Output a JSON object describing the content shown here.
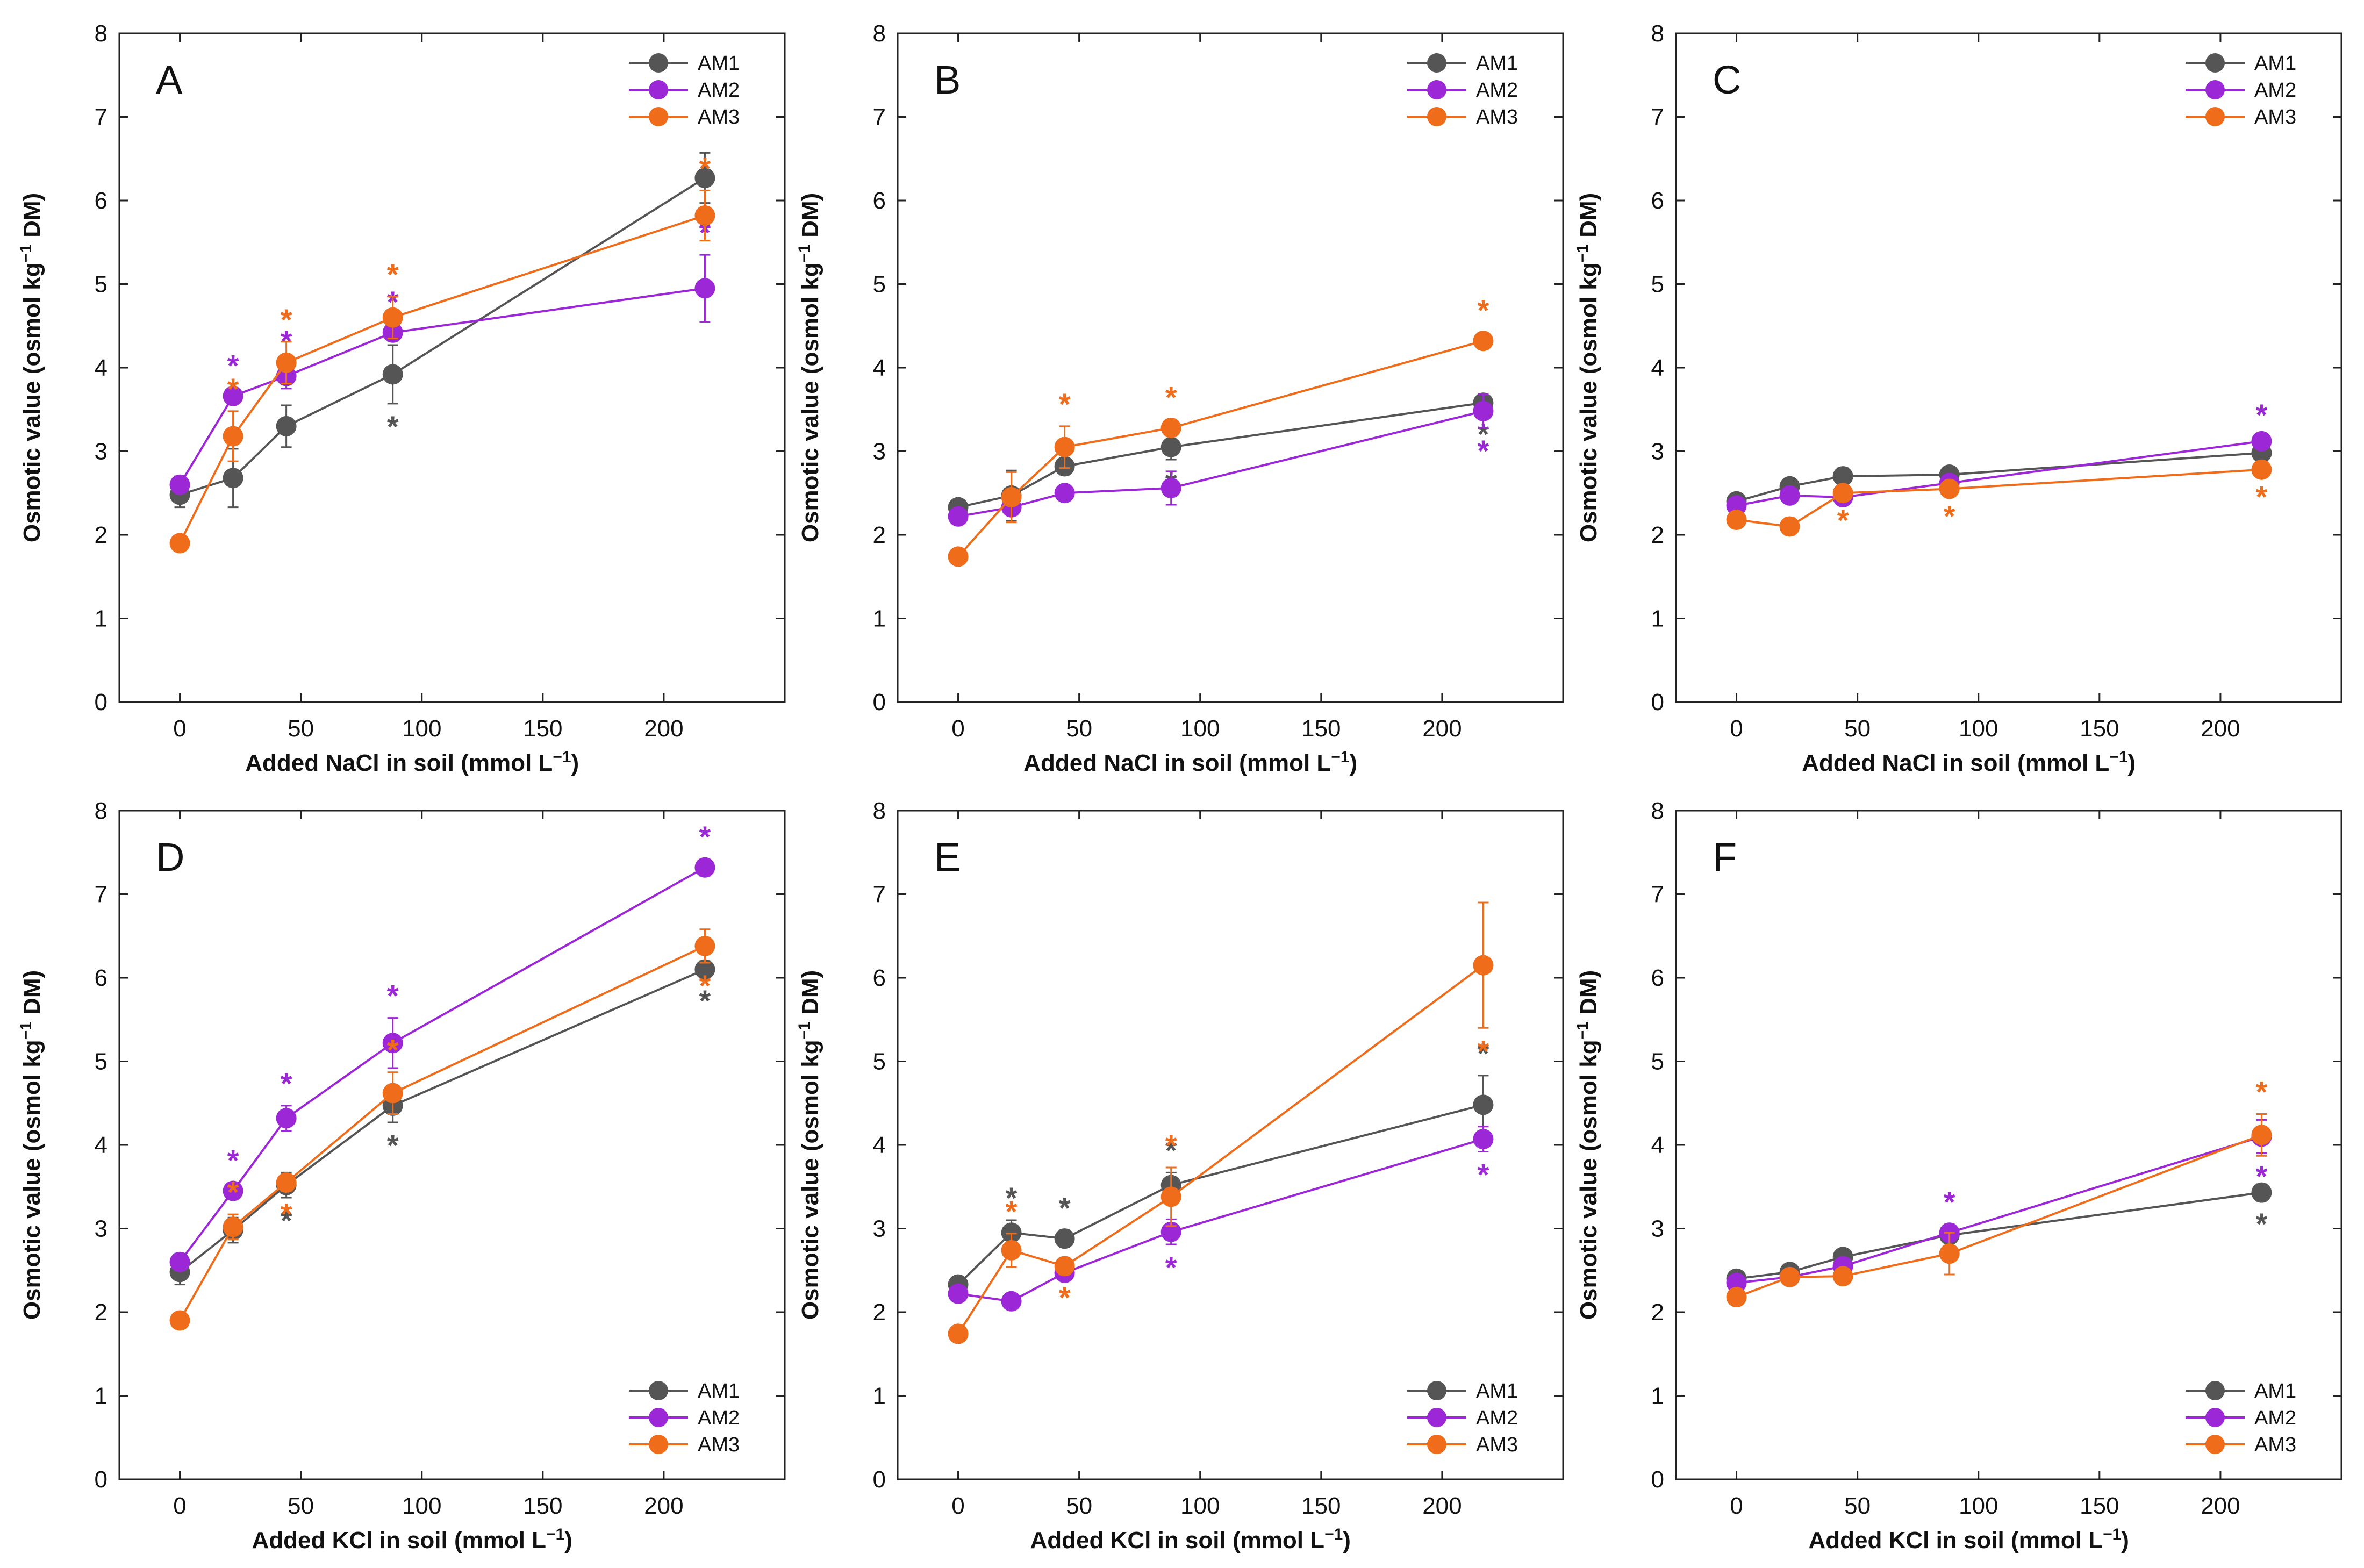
{
  "figure": {
    "series_colors": {
      "AM1": "#555555",
      "AM2": "#9b27d6",
      "AM3": "#ef6c1a"
    }
  },
  "chart_data": [
    {
      "panel": "A",
      "type": "line",
      "xlabel": "Added NaCl in soil (mmol L⁻¹)",
      "ylabel": "Osmotic value (osmol kg⁻¹ DM)",
      "xlim": [
        -25,
        250
      ],
      "ylim": [
        0,
        8
      ],
      "xticks": [
        0,
        50,
        100,
        150,
        200
      ],
      "yticks": [
        0,
        1,
        2,
        3,
        4,
        5,
        6,
        7,
        8
      ],
      "legend_position": "top-right",
      "series": [
        {
          "name": "AM1",
          "color": "#555555",
          "x": [
            0,
            22,
            44,
            88,
            217
          ],
          "y": [
            2.48,
            2.68,
            3.3,
            3.92,
            6.27
          ],
          "err": [
            0.15,
            0.35,
            0.25,
            0.35,
            0.3
          ],
          "sig": [
            false,
            false,
            false,
            true,
            true
          ],
          "sig_side": "below"
        },
        {
          "name": "AM2",
          "color": "#9b27d6",
          "x": [
            0,
            22,
            44,
            88,
            217
          ],
          "y": [
            2.6,
            3.66,
            3.9,
            4.42,
            4.95
          ],
          "err": [
            0.1,
            0.1,
            0.15,
            0.1,
            0.4
          ],
          "sig": [
            false,
            true,
            true,
            true,
            true
          ],
          "sig_side": "above"
        },
        {
          "name": "AM3",
          "color": "#ef6c1a",
          "x": [
            0,
            22,
            44,
            88,
            217
          ],
          "y": [
            1.9,
            3.18,
            4.06,
            4.6,
            5.82
          ],
          "err": [
            0.05,
            0.3,
            0.25,
            0.25,
            0.3
          ],
          "sig": [
            false,
            true,
            true,
            true,
            true
          ],
          "sig_side": "above"
        }
      ]
    },
    {
      "panel": "B",
      "type": "line",
      "xlabel": "Added NaCl in soil (mmol L⁻¹)",
      "ylabel": "Osmotic value (osmol kg⁻¹ DM)",
      "xlim": [
        -25,
        250
      ],
      "ylim": [
        0,
        8
      ],
      "xticks": [
        0,
        50,
        100,
        150,
        200
      ],
      "yticks": [
        0,
        1,
        2,
        3,
        4,
        5,
        6,
        7,
        8
      ],
      "legend_position": "top-right",
      "series": [
        {
          "name": "AM1",
          "color": "#555555",
          "x": [
            0,
            22,
            44,
            88,
            217
          ],
          "y": [
            2.33,
            2.47,
            2.82,
            3.05,
            3.58
          ],
          "err": [
            0.05,
            0.3,
            0.1,
            0.15,
            0.1
          ],
          "sig": [
            false,
            false,
            false,
            true,
            true
          ],
          "sig_side": "below"
        },
        {
          "name": "AM2",
          "color": "#9b27d6",
          "x": [
            0,
            22,
            44,
            88,
            217
          ],
          "y": [
            2.22,
            2.33,
            2.5,
            2.56,
            3.48
          ],
          "err": [
            0.05,
            0.05,
            0.05,
            0.2,
            0.2
          ],
          "sig": [
            false,
            false,
            false,
            false,
            true
          ],
          "sig_side": "below"
        },
        {
          "name": "AM3",
          "color": "#ef6c1a",
          "x": [
            0,
            22,
            44,
            88,
            217
          ],
          "y": [
            1.74,
            2.45,
            3.05,
            3.28,
            4.32
          ],
          "err": [
            0.05,
            0.3,
            0.25,
            0.1,
            0.1
          ],
          "sig": [
            false,
            false,
            true,
            true,
            true
          ],
          "sig_side": "above"
        }
      ]
    },
    {
      "panel": "C",
      "type": "line",
      "xlabel": "Added NaCl in soil (mmol L⁻¹)",
      "ylabel": "Osmotic value (osmol kg⁻¹ DM)",
      "xlim": [
        -25,
        250
      ],
      "ylim": [
        0,
        8
      ],
      "xticks": [
        0,
        50,
        100,
        150,
        200
      ],
      "yticks": [
        0,
        1,
        2,
        3,
        4,
        5,
        6,
        7,
        8
      ],
      "legend_position": "top-right",
      "series": [
        {
          "name": "AM1",
          "color": "#555555",
          "x": [
            0,
            22,
            44,
            88,
            217
          ],
          "y": [
            2.4,
            2.58,
            2.7,
            2.72,
            2.98
          ],
          "err": [
            0.05,
            0.05,
            0.1,
            0.05,
            0.05
          ],
          "sig": [
            false,
            false,
            false,
            false,
            false
          ],
          "sig_side": "below"
        },
        {
          "name": "AM2",
          "color": "#9b27d6",
          "x": [
            0,
            22,
            44,
            88,
            217
          ],
          "y": [
            2.35,
            2.47,
            2.45,
            2.62,
            3.12
          ],
          "err": [
            0.05,
            0.05,
            0.05,
            0.05,
            0.05
          ],
          "sig": [
            false,
            false,
            false,
            false,
            true
          ],
          "sig_side": "above"
        },
        {
          "name": "AM3",
          "color": "#ef6c1a",
          "x": [
            0,
            22,
            44,
            88,
            217
          ],
          "y": [
            2.18,
            2.1,
            2.5,
            2.55,
            2.78
          ],
          "err": [
            0.05,
            0.1,
            0.05,
            0.05,
            0.05
          ],
          "sig": [
            false,
            false,
            true,
            true,
            true
          ],
          "sig_side": "below"
        }
      ]
    },
    {
      "panel": "D",
      "type": "line",
      "xlabel": "Added KCl in soil (mmol L⁻¹)",
      "ylabel": "Osmotic value (osmol kg⁻¹ DM)",
      "xlim": [
        -25,
        250
      ],
      "ylim": [
        0,
        8
      ],
      "xticks": [
        0,
        50,
        100,
        150,
        200
      ],
      "yticks": [
        0,
        1,
        2,
        3,
        4,
        5,
        6,
        7,
        8
      ],
      "legend_position": "bottom-right",
      "series": [
        {
          "name": "AM1",
          "color": "#555555",
          "x": [
            0,
            22,
            44,
            88,
            217
          ],
          "y": [
            2.48,
            2.98,
            3.52,
            4.47,
            6.1
          ],
          "err": [
            0.15,
            0.15,
            0.15,
            0.2,
            0.1
          ],
          "sig": [
            false,
            false,
            true,
            true,
            true
          ],
          "sig_side": "below"
        },
        {
          "name": "AM2",
          "color": "#9b27d6",
          "x": [
            0,
            22,
            44,
            88,
            217
          ],
          "y": [
            2.6,
            3.45,
            4.32,
            5.22,
            7.32
          ],
          "err": [
            0.1,
            0.1,
            0.15,
            0.3,
            0.1
          ],
          "sig": [
            false,
            true,
            true,
            true,
            true
          ],
          "sig_side": "above"
        },
        {
          "name": "AM3",
          "color": "#ef6c1a",
          "x": [
            0,
            22,
            44,
            88,
            217
          ],
          "y": [
            1.9,
            3.02,
            3.55,
            4.62,
            6.38
          ],
          "err": [
            0.05,
            0.15,
            0.1,
            0.25,
            0.2
          ],
          "sig": [
            false,
            true,
            true,
            true,
            true
          ],
          "sig_side": "mixed"
        }
      ]
    },
    {
      "panel": "E",
      "type": "line",
      "xlabel": "Added KCl in soil (mmol L⁻¹)",
      "ylabel": "Osmotic value (osmol kg⁻¹ DM)",
      "xlim": [
        -25,
        250
      ],
      "ylim": [
        0,
        8
      ],
      "xticks": [
        0,
        50,
        100,
        150,
        200
      ],
      "yticks": [
        0,
        1,
        2,
        3,
        4,
        5,
        6,
        7,
        8
      ],
      "legend_position": "bottom-right",
      "series": [
        {
          "name": "AM1",
          "color": "#555555",
          "x": [
            0,
            22,
            44,
            88,
            217
          ],
          "y": [
            2.33,
            2.95,
            2.88,
            3.52,
            4.48
          ],
          "err": [
            0.05,
            0.15,
            0.1,
            0.15,
            0.35
          ],
          "sig": [
            false,
            true,
            true,
            true,
            true
          ],
          "sig_side": "above"
        },
        {
          "name": "AM2",
          "color": "#9b27d6",
          "x": [
            0,
            22,
            44,
            88,
            217
          ],
          "y": [
            2.22,
            2.13,
            2.47,
            2.96,
            4.07
          ],
          "err": [
            0.05,
            0.05,
            0.05,
            0.15,
            0.15
          ],
          "sig": [
            false,
            false,
            false,
            true,
            true
          ],
          "sig_side": "below"
        },
        {
          "name": "AM3",
          "color": "#ef6c1a",
          "x": [
            0,
            22,
            44,
            88,
            217
          ],
          "y": [
            1.74,
            2.74,
            2.55,
            3.38,
            6.15
          ],
          "err": [
            0.05,
            0.2,
            0.1,
            0.35,
            0.75
          ],
          "sig": [
            false,
            true,
            true,
            true,
            true
          ],
          "sig_side": "mixed"
        }
      ]
    },
    {
      "panel": "F",
      "type": "line",
      "xlabel": "Added KCl in soil (mmol L⁻¹)",
      "ylabel": "Osmotic value (osmol kg⁻¹ DM)",
      "xlim": [
        -25,
        250
      ],
      "ylim": [
        0,
        8
      ],
      "xticks": [
        0,
        50,
        100,
        150,
        200
      ],
      "yticks": [
        0,
        1,
        2,
        3,
        4,
        5,
        6,
        7,
        8
      ],
      "legend_position": "bottom-right",
      "series": [
        {
          "name": "AM1",
          "color": "#555555",
          "x": [
            0,
            22,
            44,
            88,
            217
          ],
          "y": [
            2.4,
            2.48,
            2.66,
            2.92,
            3.43
          ],
          "err": [
            0.05,
            0.05,
            0.05,
            0.05,
            0.1
          ],
          "sig": [
            false,
            false,
            false,
            true,
            true
          ],
          "sig_side": "below"
        },
        {
          "name": "AM2",
          "color": "#9b27d6",
          "x": [
            0,
            22,
            44,
            88,
            217
          ],
          "y": [
            2.35,
            2.42,
            2.55,
            2.95,
            4.1
          ],
          "err": [
            0.05,
            0.05,
            0.05,
            0.1,
            0.2
          ],
          "sig": [
            false,
            false,
            false,
            true,
            true
          ],
          "sig_side": "mixed"
        },
        {
          "name": "AM3",
          "color": "#ef6c1a",
          "x": [
            0,
            22,
            44,
            88,
            217
          ],
          "y": [
            2.18,
            2.42,
            2.43,
            2.7,
            4.12
          ],
          "err": [
            0.05,
            0.05,
            0.05,
            0.25,
            0.25
          ],
          "sig": [
            false,
            false,
            false,
            false,
            true
          ],
          "sig_side": "above"
        }
      ]
    }
  ]
}
